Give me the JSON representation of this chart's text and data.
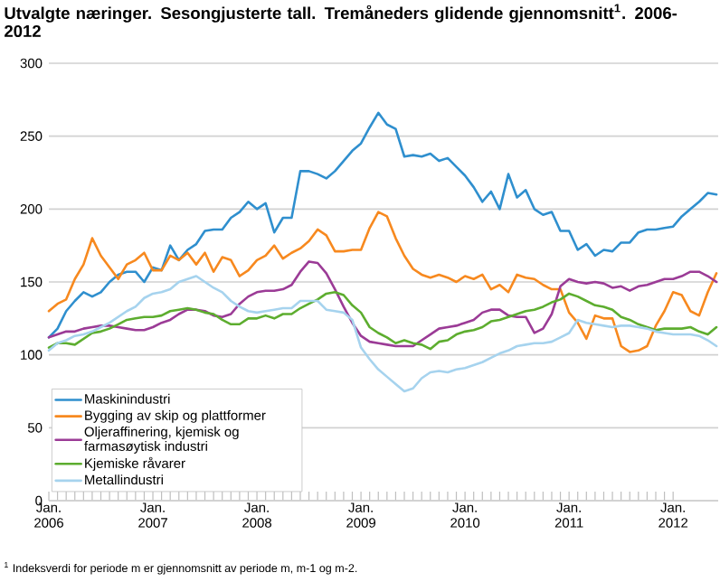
{
  "chart_data": {
    "type": "line",
    "title": "Utvalgte næringer. Sesongjusterte tall. Tremåneders glidende gjennomsnitt$^{1}$. 2006-2012",
    "annotations": [
      "$^{1}$ Indeksverdi for periode m er gjennomsnitt av periode m, m-1 og m-2."
    ],
    "x": [
      "2006-01",
      "2006-02",
      "2006-03",
      "2006-04",
      "2006-05",
      "2006-06",
      "2006-07",
      "2006-08",
      "2006-09",
      "2006-10",
      "2006-11",
      "2006-12",
      "2007-01",
      "2007-02",
      "2007-03",
      "2007-04",
      "2007-05",
      "2007-06",
      "2007-07",
      "2007-08",
      "2007-09",
      "2007-10",
      "2007-11",
      "2007-12",
      "2008-01",
      "2008-02",
      "2008-03",
      "2008-04",
      "2008-05",
      "2008-06",
      "2008-07",
      "2008-08",
      "2008-09",
      "2008-10",
      "2008-11",
      "2008-12",
      "2009-01",
      "2009-02",
      "2009-03",
      "2009-04",
      "2009-05",
      "2009-06",
      "2009-07",
      "2009-08",
      "2009-09",
      "2009-10",
      "2009-11",
      "2009-12",
      "2010-01",
      "2010-02",
      "2010-03",
      "2010-04",
      "2010-05",
      "2010-06",
      "2010-07",
      "2010-08",
      "2010-09",
      "2010-10",
      "2010-11",
      "2010-12",
      "2011-01",
      "2011-02",
      "2011-03",
      "2011-04",
      "2011-05",
      "2011-06",
      "2011-07",
      "2011-08",
      "2011-09",
      "2011-10",
      "2011-11",
      "2011-12",
      "2012-01",
      "2012-02",
      "2012-03",
      "2012-04",
      "2012-05",
      "2012-06"
    ],
    "series": [
      {
        "name": "Maskinindustri",
        "color": "#2f8fce",
        "values": [
          112,
          118,
          130,
          137,
          143,
          140,
          143,
          150,
          155,
          157,
          157,
          150,
          160,
          158,
          175,
          165,
          172,
          176,
          185,
          186,
          186,
          194,
          198,
          205,
          200,
          204,
          184,
          194,
          194,
          226,
          226,
          224,
          221,
          226,
          233,
          240,
          245,
          256,
          266,
          258,
          255,
          236,
          237,
          236,
          238,
          233,
          235,
          229,
          223,
          215,
          205,
          212,
          200,
          224,
          208,
          213,
          200,
          196,
          198,
          185,
          185,
          172,
          176,
          168,
          172,
          171,
          177,
          177,
          184,
          186,
          186,
          187,
          188,
          195,
          200,
          205,
          211,
          210
        ]
      },
      {
        "name": "Bygging av skip og plattformer",
        "color": "#f7891f",
        "values": [
          130,
          135,
          138,
          152,
          162,
          180,
          168,
          160,
          152,
          162,
          165,
          170,
          158,
          158,
          168,
          165,
          170,
          162,
          170,
          157,
          167,
          165,
          154,
          158,
          165,
          168,
          175,
          166,
          170,
          173,
          178,
          186,
          182,
          171,
          171,
          172,
          172,
          187,
          198,
          195,
          180,
          168,
          159,
          155,
          153,
          155,
          153,
          150,
          154,
          152,
          155,
          145,
          148,
          143,
          155,
          153,
          152,
          148,
          145,
          145,
          129,
          122,
          111,
          127,
          125,
          125,
          106,
          102,
          103,
          106,
          120,
          130,
          143,
          141,
          130,
          127,
          143,
          156
        ]
      },
      {
        "name": "Oljeraffinering, kjemisk og farmasøytisk industri",
        "color": "#9b3b96",
        "values": [
          112,
          114,
          116,
          116,
          118,
          119,
          120,
          120,
          119,
          118,
          117,
          117,
          119,
          122,
          124,
          128,
          131,
          131,
          130,
          127,
          126,
          128,
          135,
          140,
          143,
          144,
          144,
          145,
          148,
          157,
          164,
          163,
          156,
          145,
          133,
          122,
          113,
          109,
          108,
          107,
          106,
          106,
          106,
          110,
          114,
          118,
          119,
          120,
          122,
          124,
          129,
          131,
          131,
          127,
          126,
          126,
          115,
          118,
          128,
          147,
          152,
          150,
          149,
          150,
          149,
          146,
          147,
          144,
          147,
          148,
          150,
          152,
          152,
          154,
          157,
          157,
          154,
          150
        ]
      },
      {
        "name": "Kjemiske råvarer",
        "color": "#5dad2f",
        "values": [
          105,
          108,
          108,
          107,
          111,
          115,
          116,
          118,
          121,
          124,
          125,
          126,
          126,
          127,
          130,
          131,
          132,
          131,
          129,
          128,
          124,
          121,
          121,
          125,
          125,
          127,
          125,
          128,
          128,
          132,
          135,
          138,
          142,
          143,
          141,
          134,
          129,
          119,
          115,
          112,
          108,
          110,
          108,
          107,
          104,
          109,
          110,
          114,
          116,
          117,
          119,
          123,
          124,
          126,
          128,
          130,
          131,
          133,
          136,
          138,
          142,
          140,
          137,
          134,
          133,
          131,
          126,
          124,
          121,
          119,
          117,
          118,
          118,
          118,
          119,
          116,
          114,
          119
        ]
      },
      {
        "name": "Metallindustri",
        "color": "#a6d3ee",
        "values": [
          103,
          108,
          110,
          113,
          114,
          116,
          119,
          122,
          126,
          130,
          133,
          139,
          142,
          143,
          145,
          150,
          152,
          154,
          150,
          146,
          143,
          137,
          133,
          130,
          129,
          130,
          131,
          132,
          132,
          137,
          137,
          137,
          131,
          130,
          129,
          124,
          105,
          97,
          90,
          85,
          80,
          75,
          77,
          84,
          88,
          89,
          88,
          90,
          91,
          93,
          95,
          98,
          101,
          103,
          106,
          107,
          108,
          108,
          109,
          112,
          115,
          124,
          122,
          121,
          120,
          119,
          120,
          120,
          119,
          118,
          116,
          115,
          114,
          114,
          114,
          113,
          110,
          106
        ]
      }
    ],
    "xlim": [
      "2006-01",
      "2012-06"
    ],
    "xticks": [
      {
        "value": "2006-01",
        "label": "Jan. 2006"
      },
      {
        "value": "2007-01",
        "label": "Jan. 2007"
      },
      {
        "value": "2008-01",
        "label": "Jan. 2008"
      },
      {
        "value": "2009-01",
        "label": "Jan. 2009"
      },
      {
        "value": "2010-01",
        "label": "Jan. 2010"
      },
      {
        "value": "2011-01",
        "label": "Jan. 2011"
      },
      {
        "value": "2012-01",
        "label": "Jan. 2012"
      }
    ],
    "ylim": [
      0,
      300
    ],
    "yticks": [
      0,
      50,
      100,
      150,
      200,
      250,
      300
    ],
    "grid": "y",
    "legend": "bottom left",
    "marker": "none",
    "line_style": "solid"
  }
}
